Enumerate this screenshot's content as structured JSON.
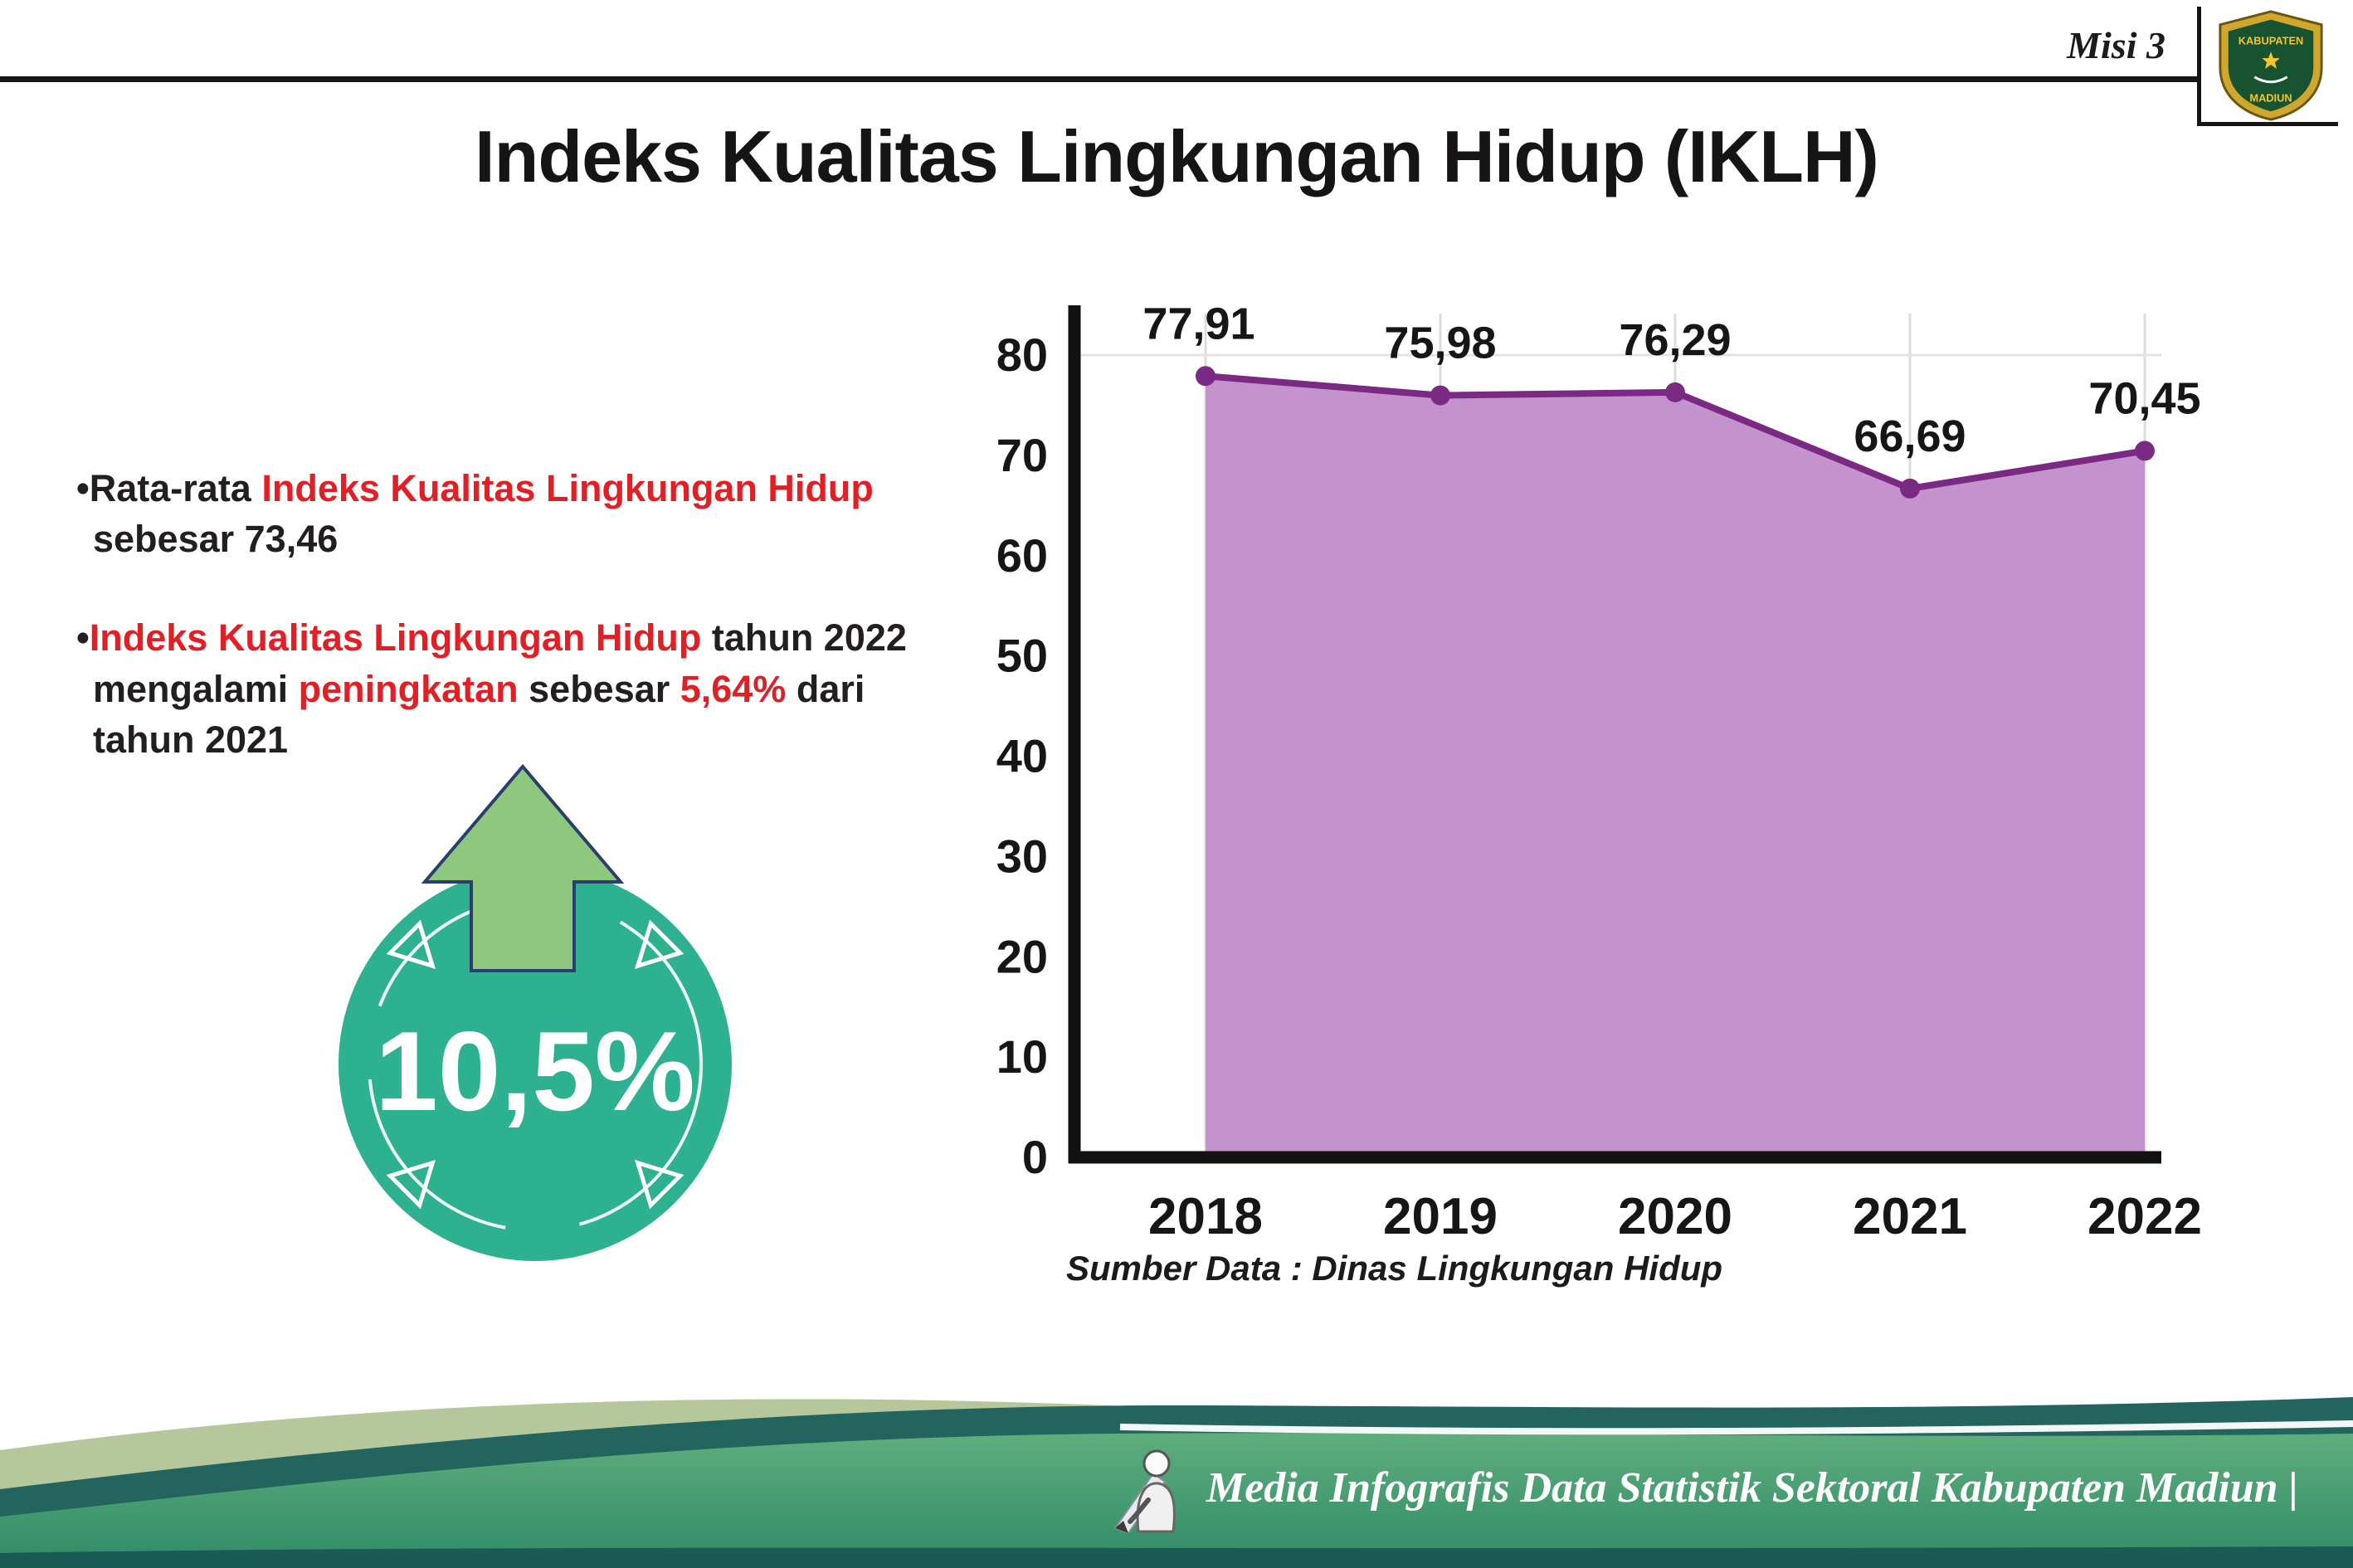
{
  "header": {
    "misi_label": "Misi 3",
    "title": "Indeks Kualitas Lingkungan Hidup (IKLH)",
    "logo_top": "KABUPATEN",
    "logo_bottom": "MADIUN"
  },
  "bullets": {
    "b1_pre": "•Rata-rata ",
    "b1_red": "Indeks Kualitas Lingkungan Hidup",
    "b1_post": " sebesar 73,46",
    "b2_bullet": "•",
    "b2_red1": "Indeks Kualitas Lingkungan Hidup",
    "b2_mid1": " tahun 2022 mengalami ",
    "b2_red2": "peningkatan",
    "b2_mid2": " sebesar ",
    "b2_red3": "5,64%",
    "b2_post": " dari tahun 2021"
  },
  "badge": {
    "value": "10,5%"
  },
  "colors": {
    "accent_red": "#e31f26",
    "badge_teal": "#2eb190",
    "arrow_green": "#8dc87e",
    "chart_fill": "#c493ce",
    "chart_line": "#7b2a84",
    "footer_green": "#3f9870",
    "footer_teal": "#23645f",
    "footer_sage": "#b5c79b"
  },
  "chart_data": {
    "type": "area",
    "title": "Indeks Kualitas Lingkungan Hidup (IKLH)",
    "categories": [
      "2018",
      "2019",
      "2020",
      "2021",
      "2022"
    ],
    "values": [
      77.91,
      75.98,
      76.29,
      66.69,
      70.45
    ],
    "point_labels": [
      "77,91",
      "75,98",
      "76,29",
      "66,69",
      "70,45"
    ],
    "ylim": [
      0,
      80
    ],
    "yticks": [
      0,
      10,
      20,
      30,
      40,
      50,
      60,
      70,
      80
    ],
    "grid": "vertical-light",
    "legend": "none",
    "fill_color": "#c493ce",
    "line_color": "#7b2a84",
    "source": "Sumber Data : Dinas Lingkungan Hidup"
  },
  "footer": {
    "credit": "Media Infografis Data Statistik Sektoral Kabupaten Madiun |"
  }
}
